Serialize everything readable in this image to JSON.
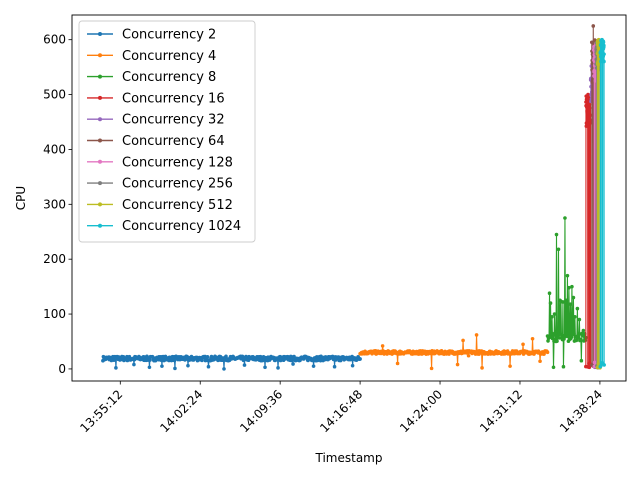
{
  "chart_data": {
    "type": "line",
    "title": "",
    "xlabel": "Timestamp",
    "ylabel": "CPU",
    "xlim": [
      "13:50:51",
      "14:40:45"
    ],
    "ylim": [
      -22,
      645
    ],
    "x_tick_labels": [
      "13:55:12",
      "14:02:24",
      "14:09:36",
      "14:16:48",
      "14:24:00",
      "14:31:12",
      "14:38:24"
    ],
    "y_tick_labels": [
      "0",
      "100",
      "200",
      "300",
      "400",
      "500",
      "600"
    ],
    "y_ticks": [
      0,
      100,
      200,
      300,
      400,
      500,
      600
    ],
    "grid": false,
    "legend_position": "upper-left",
    "series": [
      {
        "name": "Concurrency 2",
        "color": "#1f77b4",
        "time_range": [
          "13:53:38",
          "14:16:48"
        ],
        "baseline": 19,
        "noise": 4,
        "spikes": [
          [
            5,
            2
          ],
          [
            12,
            8
          ],
          [
            18,
            3
          ],
          [
            23,
            5
          ],
          [
            28,
            1
          ],
          [
            33,
            6
          ],
          [
            41,
            4
          ],
          [
            47,
            0
          ],
          [
            55,
            7
          ],
          [
            63,
            3
          ],
          [
            68,
            2
          ],
          [
            74,
            9
          ],
          [
            82,
            5
          ],
          [
            90,
            4
          ],
          [
            97,
            6
          ]
        ]
      },
      {
        "name": "Concurrency 4",
        "color": "#ff7f0e",
        "time_range": [
          "14:16:48",
          "14:33:41"
        ],
        "baseline": 30,
        "noise": 3,
        "spikes": [
          [
            12,
            42
          ],
          [
            20,
            10
          ],
          [
            38,
            1
          ],
          [
            52,
            8
          ],
          [
            55,
            52
          ],
          [
            58,
            24
          ],
          [
            62,
            62
          ],
          [
            65,
            2
          ],
          [
            80,
            5
          ],
          [
            87,
            45
          ],
          [
            92,
            55
          ],
          [
            96,
            14
          ]
        ]
      },
      {
        "name": "Concurrency 8",
        "color": "#2ca02c",
        "time_range": [
          "14:33:41",
          "14:37:08"
        ],
        "baseline": 58,
        "noise": 8,
        "spikes": [
          [
            5,
            138
          ],
          [
            8,
            120
          ],
          [
            12,
            95
          ],
          [
            15,
            3
          ],
          [
            18,
            100
          ],
          [
            24,
            245
          ],
          [
            28,
            218
          ],
          [
            32,
            125
          ],
          [
            35,
            123
          ],
          [
            40,
            122
          ],
          [
            42,
            4
          ],
          [
            46,
            275
          ],
          [
            49,
            125
          ],
          [
            52,
            170
          ],
          [
            56,
            148
          ],
          [
            60,
            118
          ],
          [
            64,
            150
          ],
          [
            68,
            130
          ],
          [
            72,
            95
          ],
          [
            78,
            110
          ],
          [
            83,
            90
          ],
          [
            88,
            15
          ],
          [
            93,
            70
          ]
        ]
      },
      {
        "name": "Concurrency 16",
        "color": "#d62728",
        "time_range": [
          "14:37:08",
          "14:37:34"
        ],
        "baseline": 470,
        "noise": 30,
        "drops": 6,
        "peak": 500
      },
      {
        "name": "Concurrency 32",
        "color": "#9467bd",
        "time_range": [
          "14:37:34",
          "14:38:00"
        ],
        "baseline": 520,
        "noise": 35,
        "drops": 6,
        "peak": 548
      },
      {
        "name": "Concurrency 64",
        "color": "#8c564b",
        "time_range": [
          "14:37:40",
          "14:38:03"
        ],
        "baseline": 560,
        "noise": 40,
        "drops": 6,
        "peak": 625
      },
      {
        "name": "Concurrency 128",
        "color": "#e377c2",
        "time_range": [
          "14:37:51",
          "14:38:05"
        ],
        "baseline": 560,
        "noise": 35,
        "drops": 5,
        "peak": 585
      },
      {
        "name": "Concurrency 256",
        "color": "#7f7f7f",
        "time_range": [
          "14:38:03",
          "14:38:18"
        ],
        "baseline": 570,
        "noise": 25,
        "drops": 5,
        "peak": 590
      },
      {
        "name": "Concurrency 512",
        "color": "#bcbd22",
        "time_range": [
          "14:38:11",
          "14:38:26"
        ],
        "baseline": 575,
        "noise": 25,
        "drops": 5,
        "peak": 600
      },
      {
        "name": "Concurrency 1024",
        "color": "#17becf",
        "time_range": [
          "14:38:26",
          "14:38:47"
        ],
        "baseline": 580,
        "noise": 20,
        "drops": 4,
        "peak": 590
      }
    ]
  }
}
